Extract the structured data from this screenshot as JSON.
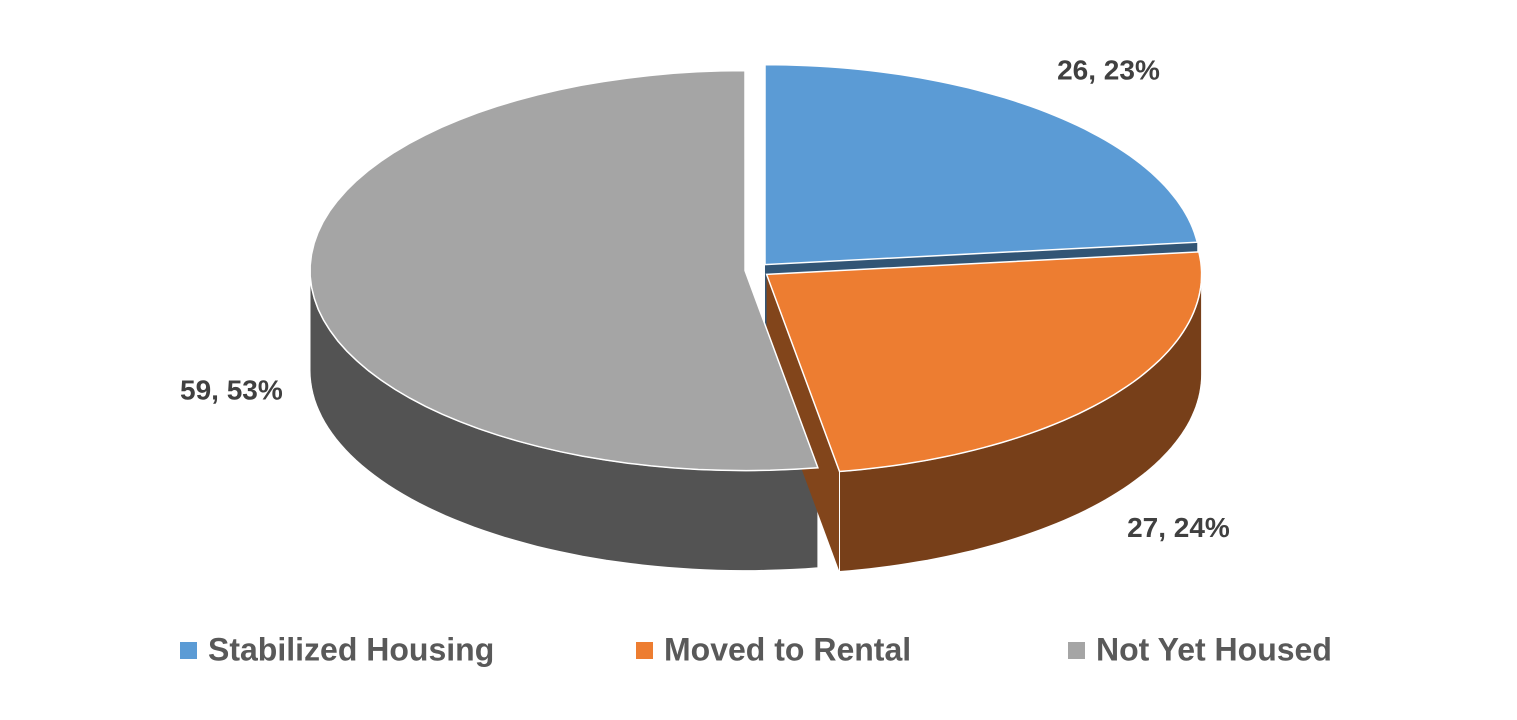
{
  "chart_data": {
    "type": "pie",
    "categories": [
      "Stabilized Housing",
      "Moved to Rental",
      "Not Yet Housed"
    ],
    "values": [
      26,
      27,
      59
    ],
    "value_labels": [
      "26, 23%",
      "27, 24%",
      "59, 53%"
    ],
    "colors": [
      "#5b9bd5",
      "#ed7d31",
      "#a5a5a5"
    ],
    "legend": "bottom"
  }
}
